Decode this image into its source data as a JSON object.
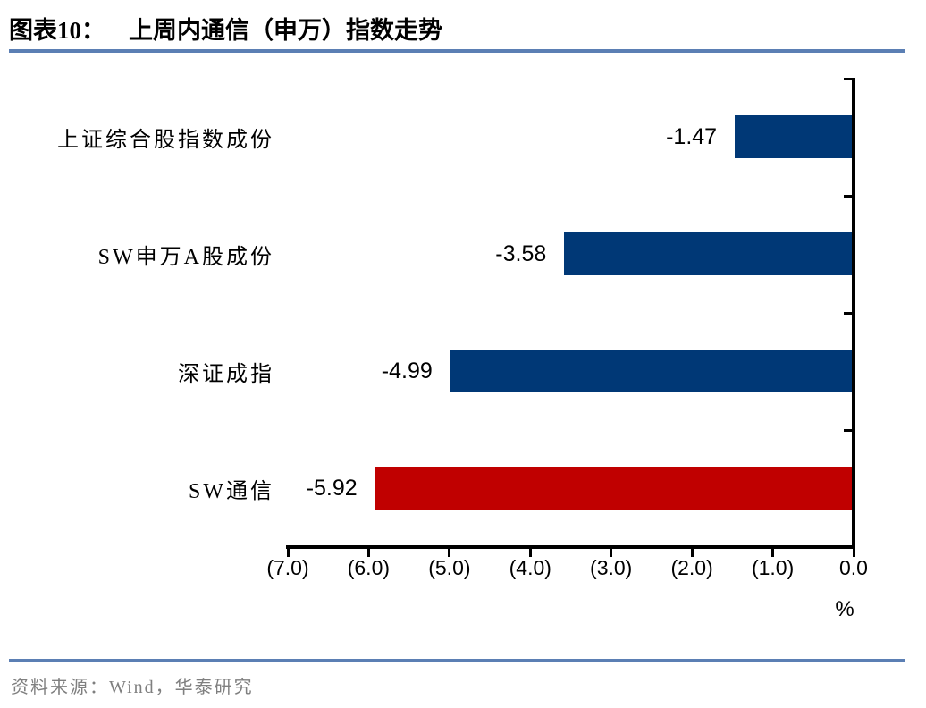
{
  "title": {
    "prefix": "图表10：",
    "text": "上周内通信（申万）指数走势"
  },
  "source": {
    "text": "资料来源：Wind，华泰研究"
  },
  "chart_data": {
    "type": "bar",
    "orientation": "horizontal",
    "title": "上周内通信（申万）指数走势",
    "categories": [
      "上证综合股指数成份",
      "SW申万A股成份",
      "深证成指",
      "SW通信"
    ],
    "values": [
      -1.47,
      -3.58,
      -4.99,
      -5.92
    ],
    "value_labels": [
      "-1.47",
      "-3.58",
      "-4.99",
      "-5.92"
    ],
    "bar_colors": [
      "#003876",
      "#003876",
      "#003876",
      "#C00000"
    ],
    "x_ticks": [
      "(7.0)",
      "(6.0)",
      "(5.0)",
      "(4.0)",
      "(3.0)",
      "(2.0)",
      "(1.0)",
      "0.0"
    ],
    "xlim": [
      -7.0,
      0.0
    ],
    "xlabel": "%",
    "grid": false,
    "legend": false
  },
  "colors": {
    "bar_blue": "#003876",
    "bar_red": "#C00000",
    "axis": "#000000",
    "separator": "#5B7FB4",
    "source_text": "#7F7F7F"
  }
}
